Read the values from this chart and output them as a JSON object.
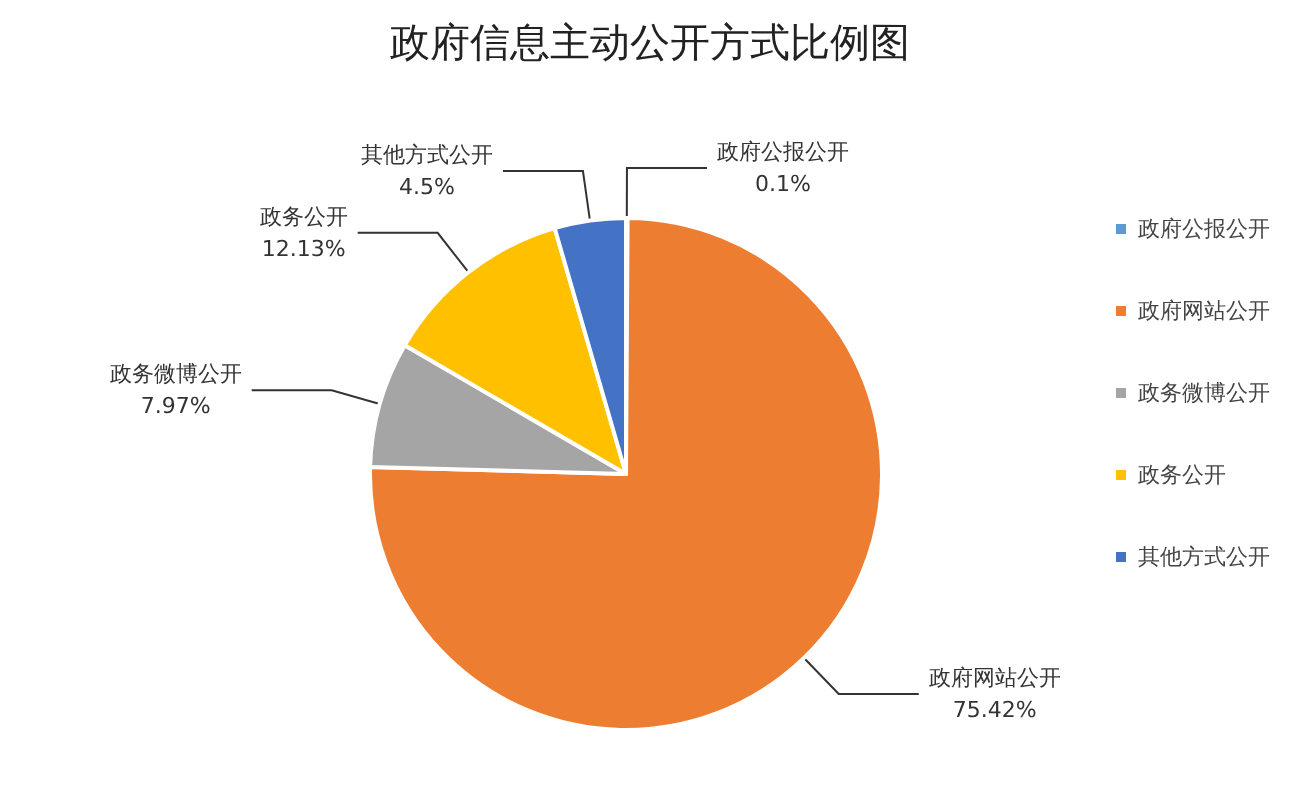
{
  "chart_data": {
    "type": "pie",
    "title": "政府信息主动公开方式比例图",
    "categories": [
      "政府公报公开",
      "政府网站公开",
      "政务微博公开",
      "政务公开",
      "其他方式公开"
    ],
    "values": [
      0.1,
      75.42,
      7.97,
      12.13,
      4.5
    ],
    "value_labels": [
      "0.1%",
      "75.42%",
      "7.97%",
      "12.13%",
      "4.5%"
    ],
    "colors": [
      "#5b9bd5",
      "#ed7d31",
      "#a5a5a5",
      "#ffc000",
      "#4472c4"
    ],
    "legend": "right"
  }
}
